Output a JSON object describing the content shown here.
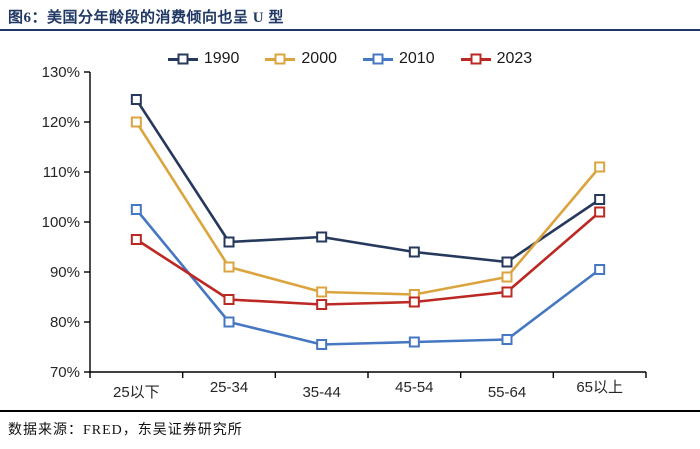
{
  "figure": {
    "title": "图6：美国分年龄段的消费倾向也呈 U 型",
    "source": "数据来源：FRED，东吴证券研究所"
  },
  "colors": {
    "title_navy": "#1f3864",
    "top_rule": "#1f3864",
    "bottom_rule": "#000000",
    "axis_line": "#000000",
    "tick_text": "#262626",
    "series_1990": "#26395c",
    "series_2000": "#dca43e",
    "series_2010": "#4577c2",
    "series_2023": "#bc2823"
  },
  "chart_data": {
    "type": "line",
    "title": "图6：美国分年龄段的消费倾向也呈 U 型",
    "categories": [
      "25以下",
      "25-34",
      "35-44",
      "45-54",
      "55-64",
      "65以上"
    ],
    "series": [
      {
        "name": "1990",
        "color_key": "series_1990",
        "values": [
          124.5,
          96,
          97,
          94,
          92,
          104.5
        ]
      },
      {
        "name": "2000",
        "color_key": "series_2000",
        "values": [
          120,
          91,
          86,
          85.5,
          89,
          111
        ]
      },
      {
        "name": "2010",
        "color_key": "series_2010",
        "values": [
          102.5,
          80,
          75.5,
          76,
          76.5,
          90.5
        ]
      },
      {
        "name": "2023",
        "color_key": "series_2023",
        "values": [
          96.5,
          84.5,
          83.5,
          84,
          86,
          102
        ]
      }
    ],
    "ylim": [
      70,
      130
    ],
    "ytick_step": 10,
    "ytick_labels": [
      "70%",
      "80%",
      "90%",
      "100%",
      "110%",
      "120%",
      "130%"
    ],
    "xlabel": "",
    "ylabel": "",
    "grid": false,
    "legend_position": "top-center",
    "marker": "hollow-square"
  }
}
